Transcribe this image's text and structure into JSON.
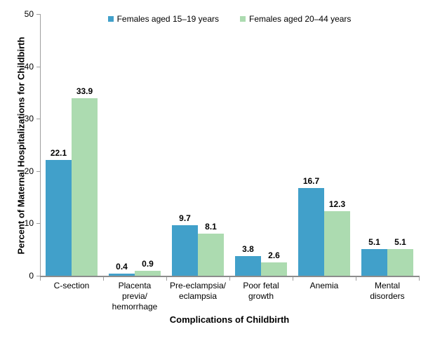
{
  "chart_data": {
    "type": "bar",
    "title": "",
    "xlabel": "Complications of Childbirth",
    "ylabel": "Percent of Maternal Hospitalizations for Childbirth",
    "ylim": [
      0,
      50
    ],
    "yticks": [
      0,
      10,
      20,
      30,
      40,
      50
    ],
    "grid": false,
    "legend_position": "top-center",
    "categories": [
      "C-section",
      "Placenta\nprevia/\nhemorrhage",
      "Pre-eclampsia/\neclampsia",
      "Poor fetal\ngrowth",
      "Anemia",
      "Mental\ndisorders"
    ],
    "series": [
      {
        "name": "Females aged 15–19 years",
        "color": "#41a0ca",
        "values": [
          22.1,
          0.4,
          9.7,
          3.8,
          16.7,
          5.1
        ]
      },
      {
        "name": "Females aged 20–44 years",
        "color": "#acdbb0",
        "values": [
          33.9,
          0.9,
          8.1,
          2.6,
          12.3,
          5.1
        ]
      }
    ],
    "colors": {
      "axis_line": "#9e9e9e",
      "baseline": "#8c8c8c",
      "text": "#000000"
    }
  }
}
